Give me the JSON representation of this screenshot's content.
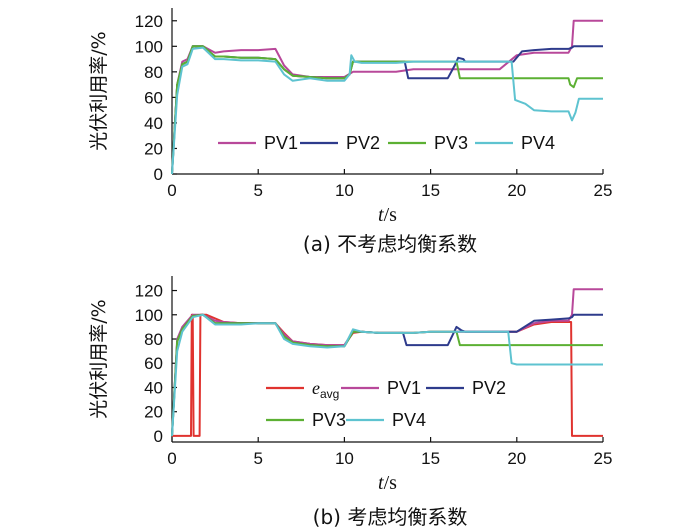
{
  "chart_data": [
    {
      "type": "line",
      "caption": "(a)  不考虑均衡系数",
      "ylabel": "光伏利用率/%",
      "xlabel_italic": "t",
      "xlabel_unit": "/s",
      "xlim": [
        0,
        25
      ],
      "ylim": [
        0,
        130
      ],
      "xticks": [
        "0",
        "5",
        "10",
        "15",
        "20",
        "25"
      ],
      "yticks": [
        "0",
        "20",
        "40",
        "60",
        "80",
        "100",
        "120"
      ],
      "legend_position": "bottom-center",
      "series": [
        {
          "name": "PV1",
          "color": "#b8489a",
          "x": [
            0,
            0.3,
            0.6,
            0.9,
            1.2,
            1.8,
            2.5,
            3,
            4,
            5,
            6,
            6.5,
            7,
            8,
            9,
            10,
            10.5,
            11,
            12,
            13,
            14,
            15,
            16,
            17,
            18,
            19,
            20,
            20.5,
            21,
            22,
            23,
            23.2,
            23.3,
            25
          ],
          "y": [
            0,
            70,
            88,
            90,
            100,
            100,
            95,
            96,
            97,
            97,
            98,
            85,
            78,
            76,
            76,
            76,
            80,
            80,
            80,
            80,
            82,
            82,
            82,
            82,
            82,
            82,
            93,
            94,
            95,
            95,
            95,
            100,
            120,
            120
          ]
        },
        {
          "name": "PV2",
          "color": "#2e3b8c",
          "x": [
            0,
            0.3,
            0.6,
            0.9,
            1.2,
            1.8,
            2.5,
            3,
            4,
            5,
            6,
            6.5,
            7,
            8,
            9,
            10,
            10.3,
            10.5,
            11,
            12,
            13,
            13.5,
            13.7,
            14,
            16,
            16.4,
            16.6,
            16.9,
            17,
            18,
            19,
            19.8,
            20.3,
            21,
            22,
            23,
            23.2,
            23.3,
            25
          ],
          "y": [
            0,
            70,
            86,
            88,
            100,
            100,
            92,
            92,
            91,
            91,
            90,
            82,
            77,
            76,
            75,
            75,
            78,
            88,
            88,
            88,
            88,
            88,
            75,
            75,
            75,
            85,
            91,
            90,
            88,
            88,
            88,
            88,
            96,
            97,
            98,
            98,
            99,
            100,
            100
          ]
        },
        {
          "name": "PV3",
          "color": "#5cb033",
          "x": [
            0,
            0.3,
            0.6,
            0.9,
            1.2,
            1.8,
            2.5,
            3,
            4,
            5,
            6,
            6.5,
            7,
            8,
            9,
            10,
            10.3,
            10.5,
            11,
            12,
            13,
            14,
            15,
            16,
            16.5,
            16.7,
            17,
            18,
            19,
            20,
            21,
            22,
            23,
            23.1,
            23.3,
            23.5,
            25
          ],
          "y": [
            0,
            70,
            86,
            88,
            100,
            100,
            92,
            92,
            91,
            91,
            90,
            82,
            77,
            76,
            75,
            75,
            78,
            88,
            88,
            88,
            88,
            88,
            88,
            88,
            88,
            75,
            75,
            75,
            75,
            75,
            75,
            75,
            75,
            70,
            68,
            75,
            75
          ]
        },
        {
          "name": "PV4",
          "color": "#5ec3d0",
          "x": [
            0,
            0.3,
            0.6,
            0.9,
            1.2,
            1.8,
            2.5,
            3,
            4,
            5,
            6,
            6.5,
            7,
            8,
            9,
            10,
            10.3,
            10.4,
            10.6,
            11,
            12,
            13,
            14,
            15,
            16,
            17,
            18,
            19,
            19.7,
            19.9,
            20.5,
            21,
            22,
            23,
            23.2,
            23.4,
            23.6,
            25
          ],
          "y": [
            0,
            62,
            84,
            86,
            98,
            99,
            90,
            90,
            89,
            89,
            88,
            78,
            73,
            75,
            73,
            73,
            78,
            93,
            88,
            87,
            87,
            87,
            88,
            88,
            88,
            88,
            88,
            88,
            88,
            58,
            55,
            50,
            49,
            49,
            42,
            48,
            59,
            59
          ]
        }
      ]
    },
    {
      "type": "line",
      "caption": "(b)  考虑均衡系数",
      "ylabel": "光伏利用率/%",
      "xlabel_italic": "t",
      "xlabel_unit": "/s",
      "xlim": [
        0,
        25
      ],
      "ylim": [
        -5,
        132
      ],
      "xticks": [
        "0",
        "5",
        "10",
        "15",
        "20",
        "25"
      ],
      "yticks": [
        "0",
        "20",
        "40",
        "60",
        "80",
        "100",
        "120"
      ],
      "legend_position": "bottom-center",
      "series": [
        {
          "name": "e",
          "name_sub": "avg",
          "color": "#e0332f",
          "x": [
            0,
            1.1,
            1.15,
            1.2,
            1.25,
            1.6,
            1.65,
            1.7,
            2,
            3,
            4,
            5,
            6,
            6.5,
            7,
            8,
            9,
            10,
            10.5,
            11,
            12,
            13,
            14,
            15,
            16,
            17,
            18,
            19,
            20,
            21,
            22,
            23,
            23.15,
            23.2,
            25
          ],
          "y": [
            0,
            0,
            100,
            100,
            0,
            0,
            100,
            100,
            100,
            94,
            93,
            93,
            93,
            85,
            78,
            76,
            75,
            75,
            85,
            86,
            85,
            85,
            85,
            86,
            86,
            86,
            86,
            86,
            86,
            92,
            94,
            94,
            94,
            0,
            0
          ]
        },
        {
          "name": "PV1",
          "color": "#b8489a",
          "x": [
            0,
            0.3,
            0.6,
            1.2,
            1.8,
            2.5,
            3,
            4,
            5,
            6,
            6.5,
            7,
            8,
            9,
            10,
            10.5,
            11,
            12,
            13,
            14,
            15,
            16,
            17,
            18,
            19,
            20,
            21,
            22,
            23,
            23.2,
            23.3,
            25
          ],
          "y": [
            0,
            80,
            90,
            100,
            100,
            95,
            94,
            93,
            93,
            93,
            84,
            78,
            76,
            75,
            75,
            86,
            86,
            85,
            85,
            85,
            86,
            86,
            86,
            86,
            86,
            86,
            93,
            95,
            95,
            100,
            121,
            121
          ]
        },
        {
          "name": "PV2",
          "color": "#2e3b8c",
          "x": [
            0,
            0.3,
            0.6,
            1.2,
            1.8,
            2.5,
            3,
            4,
            5,
            6,
            6.5,
            7,
            8,
            9,
            10,
            10.5,
            11,
            12,
            13,
            13.4,
            13.6,
            14,
            16,
            16.5,
            16.8,
            17,
            18,
            19,
            20,
            21,
            22,
            23,
            23.2,
            23.3,
            25
          ],
          "y": [
            0,
            78,
            88,
            99,
            100,
            93,
            93,
            93,
            93,
            93,
            82,
            77,
            75,
            74,
            74,
            86,
            86,
            85,
            85,
            85,
            75,
            75,
            75,
            90,
            87,
            86,
            86,
            86,
            86,
            95,
            96,
            97,
            98,
            100,
            100
          ]
        },
        {
          "name": "PV3",
          "color": "#5cb033",
          "x": [
            0,
            0.3,
            0.6,
            1.2,
            1.8,
            2.5,
            3,
            4,
            5,
            6,
            6.5,
            7,
            8,
            9,
            10,
            10.5,
            11,
            12,
            13,
            14,
            15,
            16,
            16.5,
            16.7,
            17,
            18,
            19,
            20,
            21,
            22,
            23,
            25
          ],
          "y": [
            0,
            78,
            88,
            99,
            100,
            93,
            93,
            93,
            93,
            93,
            82,
            77,
            75,
            74,
            74,
            86,
            86,
            85,
            85,
            85,
            86,
            86,
            86,
            75,
            75,
            75,
            75,
            75,
            75,
            75,
            75,
            75
          ]
        },
        {
          "name": "PV4",
          "color": "#5ec3d0",
          "x": [
            0,
            0.3,
            0.6,
            1.2,
            1.8,
            2.5,
            3,
            4,
            5,
            6,
            6.5,
            7,
            8,
            9,
            10,
            10.5,
            11,
            12,
            13,
            14,
            15,
            16,
            17,
            18,
            19,
            19.5,
            19.7,
            20,
            21,
            22,
            23,
            25
          ],
          "y": [
            0,
            70,
            86,
            98,
            100,
            92,
            92,
            92,
            93,
            93,
            80,
            76,
            74,
            73,
            74,
            88,
            86,
            85,
            85,
            85,
            86,
            86,
            86,
            86,
            86,
            86,
            60,
            59,
            59,
            59,
            59,
            59
          ]
        }
      ]
    }
  ]
}
